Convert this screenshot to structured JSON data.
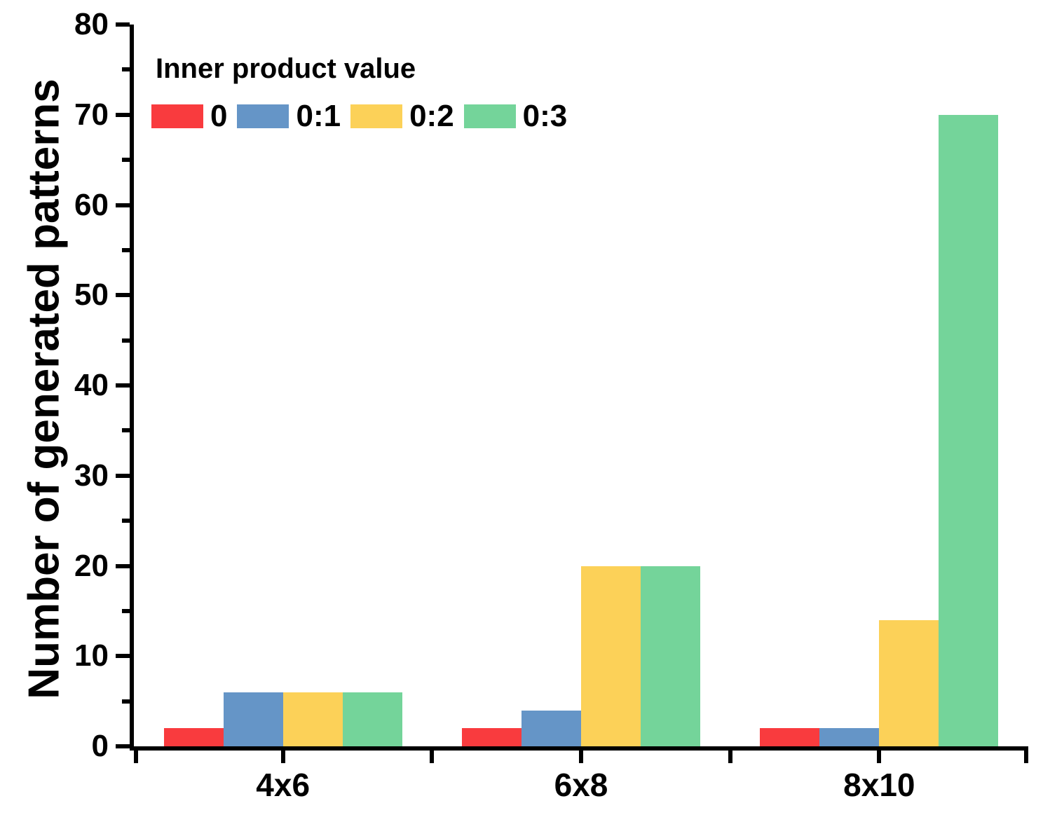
{
  "chart_data": {
    "type": "bar",
    "title": "",
    "xlabel": "",
    "ylabel": "Number of generated patterns",
    "categories": [
      "4x6",
      "6x8",
      "8x10"
    ],
    "series": [
      {
        "name": "0",
        "color": "#F93B3E",
        "values": [
          2,
          2,
          2
        ]
      },
      {
        "name": "0:1",
        "color": "#6595C7",
        "values": [
          6,
          4,
          2
        ]
      },
      {
        "name": "0:2",
        "color": "#FCD158",
        "values": [
          6,
          20,
          14
        ]
      },
      {
        "name": "0:3",
        "color": "#74D49A",
        "values": [
          6,
          20,
          70
        ]
      }
    ],
    "ylim": [
      0,
      80
    ],
    "y_major_tick_step": 10,
    "y_minor_tick_step": 5,
    "grid": false,
    "axis_color": "#000000",
    "legend": {
      "title": "Inner product value",
      "position": "top-left"
    }
  }
}
